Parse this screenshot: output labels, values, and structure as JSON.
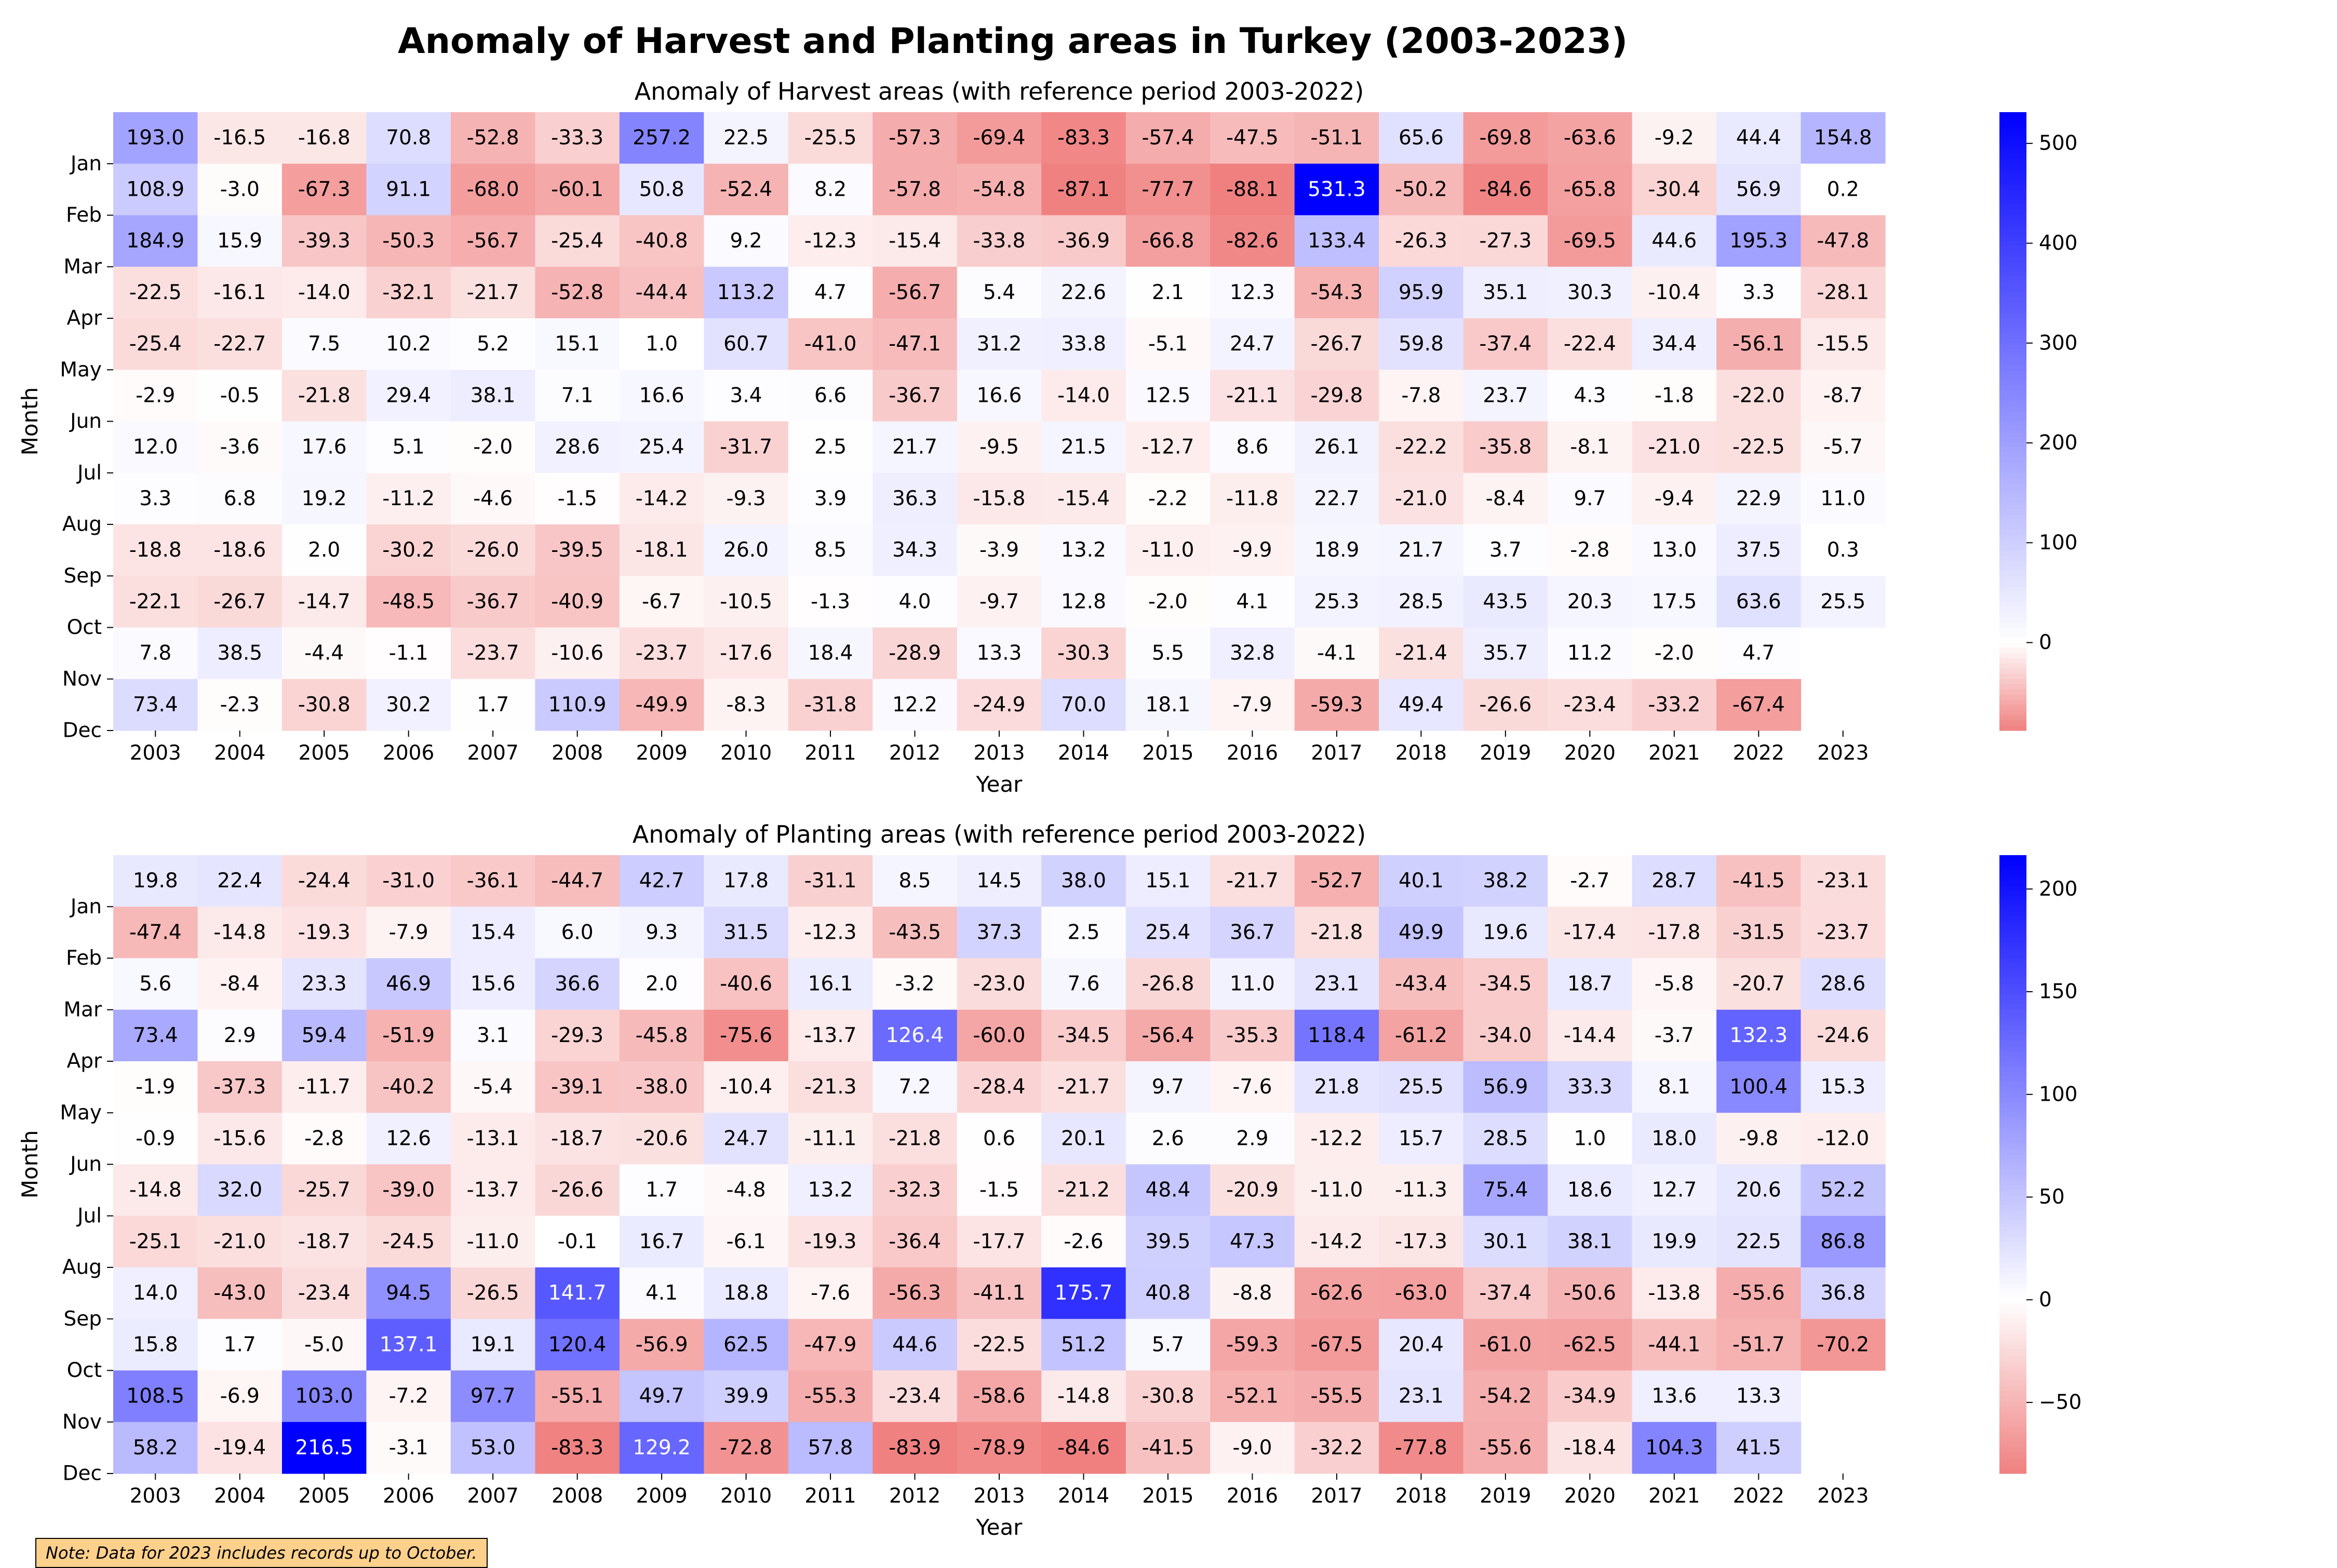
{
  "suptitle": "Anomaly of Harvest and Planting areas in Turkey (2003-2023)",
  "note": "Note: Data for 2023 includes records up to October.",
  "colors": {
    "positive": "#0000ff",
    "zero": "#ffffff",
    "negative": "#f08080"
  },
  "chart_data": [
    {
      "type": "heatmap",
      "title": "Anomaly of Harvest areas (with reference period 2003-2022)",
      "xlabel": "Year",
      "ylabel": "Month",
      "x": [
        "2003",
        "2004",
        "2005",
        "2006",
        "2007",
        "2008",
        "2009",
        "2010",
        "2011",
        "2012",
        "2013",
        "2014",
        "2015",
        "2016",
        "2017",
        "2018",
        "2019",
        "2020",
        "2021",
        "2022",
        "2023"
      ],
      "y": [
        "Jan",
        "Feb",
        "Mar",
        "Apr",
        "May",
        "Jun",
        "Jul",
        "Aug",
        "Sep",
        "Oct",
        "Nov",
        "Dec"
      ],
      "values": [
        [
          193.0,
          -16.5,
          -16.8,
          70.8,
          -52.8,
          -33.3,
          257.2,
          22.5,
          -25.5,
          -57.3,
          -69.4,
          -83.3,
          -57.4,
          -47.5,
          -51.1,
          65.6,
          -69.8,
          -63.6,
          -9.2,
          44.4,
          154.8
        ],
        [
          108.9,
          -3.0,
          -67.3,
          91.1,
          -68.0,
          -60.1,
          50.8,
          -52.4,
          8.2,
          -57.8,
          -54.8,
          -87.1,
          -77.7,
          -88.1,
          531.3,
          -50.2,
          -84.6,
          -65.8,
          -30.4,
          56.9,
          0.2
        ],
        [
          184.9,
          15.9,
          -39.3,
          -50.3,
          -56.7,
          -25.4,
          -40.8,
          9.2,
          -12.3,
          -15.4,
          -33.8,
          -36.9,
          -66.8,
          -82.6,
          133.4,
          -26.3,
          -27.3,
          -69.5,
          44.6,
          195.3,
          -47.8
        ],
        [
          -22.5,
          -16.1,
          -14.0,
          -32.1,
          -21.7,
          -52.8,
          -44.4,
          113.2,
          4.7,
          -56.7,
          5.4,
          22.6,
          2.1,
          12.3,
          -54.3,
          95.9,
          35.1,
          30.3,
          -10.4,
          3.3,
          -28.1
        ],
        [
          -25.4,
          -22.7,
          7.5,
          10.2,
          5.2,
          15.1,
          1.0,
          60.7,
          -41.0,
          -47.1,
          31.2,
          33.8,
          -5.1,
          24.7,
          -26.7,
          59.8,
          -37.4,
          -22.4,
          34.4,
          -56.1,
          -15.5
        ],
        [
          -2.9,
          -0.5,
          -21.8,
          29.4,
          38.1,
          7.1,
          16.6,
          3.4,
          6.6,
          -36.7,
          16.6,
          -14.0,
          12.5,
          -21.1,
          -29.8,
          -7.8,
          23.7,
          4.3,
          -1.8,
          -22.0,
          -8.7
        ],
        [
          12.0,
          -3.6,
          17.6,
          5.1,
          -2.0,
          28.6,
          25.4,
          -31.7,
          2.5,
          21.7,
          -9.5,
          21.5,
          -12.7,
          8.6,
          26.1,
          -22.2,
          -35.8,
          -8.1,
          -21.0,
          -22.5,
          -5.7
        ],
        [
          3.3,
          6.8,
          19.2,
          -11.2,
          -4.6,
          -1.5,
          -14.2,
          -9.3,
          3.9,
          36.3,
          -15.8,
          -15.4,
          -2.2,
          -11.8,
          22.7,
          -21.0,
          -8.4,
          9.7,
          -9.4,
          22.9,
          11.0
        ],
        [
          -18.8,
          -18.6,
          2.0,
          -30.2,
          -26.0,
          -39.5,
          -18.1,
          26.0,
          8.5,
          34.3,
          -3.9,
          13.2,
          -11.0,
          -9.9,
          18.9,
          21.7,
          3.7,
          -2.8,
          13.0,
          37.5,
          0.3
        ],
        [
          -22.1,
          -26.7,
          -14.7,
          -48.5,
          -36.7,
          -40.9,
          -6.7,
          -10.5,
          -1.3,
          4.0,
          -9.7,
          12.8,
          -2.0,
          4.1,
          25.3,
          28.5,
          43.5,
          20.3,
          17.5,
          63.6,
          25.5
        ],
        [
          7.8,
          38.5,
          -4.4,
          -1.1,
          -23.7,
          -10.6,
          -23.7,
          -17.6,
          18.4,
          -28.9,
          13.3,
          -30.3,
          5.5,
          32.8,
          -4.1,
          -21.4,
          35.7,
          11.2,
          -2.0,
          4.7,
          null
        ],
        [
          73.4,
          -2.3,
          -30.8,
          30.2,
          1.7,
          110.9,
          -49.9,
          -8.3,
          -31.8,
          12.2,
          -24.9,
          70.0,
          18.1,
          -7.9,
          -59.3,
          49.4,
          -26.6,
          -23.4,
          -33.2,
          -67.4,
          null
        ]
      ],
      "colorbar": {
        "vmin": -88.1,
        "vmax": 531.3,
        "ticks": [
          0,
          100,
          200,
          300,
          400,
          500
        ]
      }
    },
    {
      "type": "heatmap",
      "title": "Anomaly of Planting areas (with reference period 2003-2022)",
      "xlabel": "Year",
      "ylabel": "Month",
      "x": [
        "2003",
        "2004",
        "2005",
        "2006",
        "2007",
        "2008",
        "2009",
        "2010",
        "2011",
        "2012",
        "2013",
        "2014",
        "2015",
        "2016",
        "2017",
        "2018",
        "2019",
        "2020",
        "2021",
        "2022",
        "2023"
      ],
      "y": [
        "Jan",
        "Feb",
        "Mar",
        "Apr",
        "May",
        "Jun",
        "Jul",
        "Aug",
        "Sep",
        "Oct",
        "Nov",
        "Dec"
      ],
      "values": [
        [
          19.8,
          22.4,
          -24.4,
          -31.0,
          -36.1,
          -44.7,
          42.7,
          17.8,
          -31.1,
          8.5,
          14.5,
          38.0,
          15.1,
          -21.7,
          -52.7,
          40.1,
          38.2,
          -2.7,
          28.7,
          -41.5,
          -23.1
        ],
        [
          -47.4,
          -14.8,
          -19.3,
          -7.9,
          15.4,
          6.0,
          9.3,
          31.5,
          -12.3,
          -43.5,
          37.3,
          2.5,
          25.4,
          36.7,
          -21.8,
          49.9,
          19.6,
          -17.4,
          -17.8,
          -31.5,
          -23.7
        ],
        [
          5.6,
          -8.4,
          23.3,
          46.9,
          15.6,
          36.6,
          2.0,
          -40.6,
          16.1,
          -3.2,
          -23.0,
          7.6,
          -26.8,
          11.0,
          23.1,
          -43.4,
          -34.5,
          18.7,
          -5.8,
          -20.7,
          28.6
        ],
        [
          73.4,
          2.9,
          59.4,
          -51.9,
          3.1,
          -29.3,
          -45.8,
          -75.6,
          -13.7,
          126.4,
          -60.0,
          -34.5,
          -56.4,
          -35.3,
          118.4,
          -61.2,
          -34.0,
          -14.4,
          -3.7,
          132.3,
          -24.6
        ],
        [
          -1.9,
          -37.3,
          -11.7,
          -40.2,
          -5.4,
          -39.1,
          -38.0,
          -10.4,
          -21.3,
          7.2,
          -28.4,
          -21.7,
          9.7,
          -7.6,
          21.8,
          25.5,
          56.9,
          33.3,
          8.1,
          100.4,
          15.3
        ],
        [
          -0.9,
          -15.6,
          -2.8,
          12.6,
          -13.1,
          -18.7,
          -20.6,
          24.7,
          -11.1,
          -21.8,
          0.6,
          20.1,
          2.6,
          2.9,
          -12.2,
          15.7,
          28.5,
          1.0,
          18.0,
          -9.8,
          -12.0
        ],
        [
          -14.8,
          32.0,
          -25.7,
          -39.0,
          -13.7,
          -26.6,
          1.7,
          -4.8,
          13.2,
          -32.3,
          -1.5,
          -21.2,
          48.4,
          -20.9,
          -11.0,
          -11.3,
          75.4,
          18.6,
          12.7,
          20.6,
          52.2
        ],
        [
          -25.1,
          -21.0,
          -18.7,
          -24.5,
          -11.0,
          -0.1,
          16.7,
          -6.1,
          -19.3,
          -36.4,
          -17.7,
          -2.6,
          39.5,
          47.3,
          -14.2,
          -17.3,
          30.1,
          38.1,
          19.9,
          22.5,
          86.8
        ],
        [
          14.0,
          -43.0,
          -23.4,
          94.5,
          -26.5,
          141.7,
          4.1,
          18.8,
          -7.6,
          -56.3,
          -41.1,
          175.7,
          40.8,
          -8.8,
          -62.6,
          -63.0,
          -37.4,
          -50.6,
          -13.8,
          -55.6,
          36.8
        ],
        [
          15.8,
          1.7,
          -5.0,
          137.1,
          19.1,
          120.4,
          -56.9,
          62.5,
          -47.9,
          44.6,
          -22.5,
          51.2,
          5.7,
          -59.3,
          -67.5,
          20.4,
          -61.0,
          -62.5,
          -44.1,
          -51.7,
          -70.2
        ],
        [
          108.5,
          -6.9,
          103.0,
          -7.2,
          97.7,
          -55.1,
          49.7,
          39.9,
          -55.3,
          -23.4,
          -58.6,
          -14.8,
          -30.8,
          -52.1,
          -55.5,
          23.1,
          -54.2,
          -34.9,
          13.6,
          13.3,
          null
        ],
        [
          58.2,
          -19.4,
          216.5,
          -3.1,
          53.0,
          -83.3,
          129.2,
          -72.8,
          57.8,
          -83.9,
          -78.9,
          -84.6,
          -41.5,
          -9.0,
          -32.2,
          -77.8,
          -55.6,
          -18.4,
          104.3,
          41.5,
          null
        ]
      ],
      "colorbar": {
        "vmin": -84.6,
        "vmax": 216.5,
        "ticks": [
          -50,
          0,
          50,
          100,
          150,
          200
        ]
      }
    }
  ]
}
